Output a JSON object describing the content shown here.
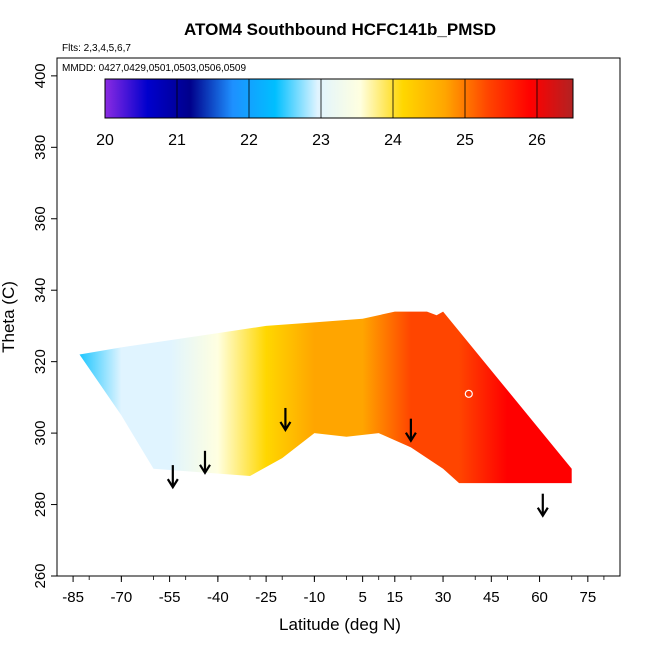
{
  "chart_data": {
    "type": "heatmap",
    "title": "ATOM4 Southbound HCFC141b_PMSD",
    "flights_note": "Flts: 2,3,4,5,6,7",
    "dates_note": "MMDD: 0427,0429,0501,0503,0506,0509",
    "xlabel": "Latitude (deg N)",
    "ylabel": "Theta (C)",
    "xlim": [
      -90,
      85
    ],
    "ylim": [
      260,
      405
    ],
    "x_tick_labels": [
      "-85",
      "-70",
      "-55",
      "-40",
      "-25",
      "-10",
      "5",
      "15",
      "30",
      "45",
      "60",
      "75"
    ],
    "y_tick_labels": [
      "260",
      "280",
      "300",
      "320",
      "340",
      "360",
      "380",
      "400"
    ],
    "colorbar": {
      "min": 20,
      "max": 26.5,
      "tick_labels": [
        "20",
        "21",
        "22",
        "23",
        "24",
        "25",
        "26"
      ],
      "colors": [
        "#8b2be2",
        "#0000cd",
        "#00008b",
        "#1e90ff",
        "#00bfff",
        "#e0f4ff",
        "#ffffe0",
        "#ffd700",
        "#ffa500",
        "#ff4500",
        "#ff0000",
        "#b22222"
      ]
    },
    "field": {
      "upper_boundary": [
        [
          -83,
          322
        ],
        [
          -70,
          324
        ],
        [
          -55,
          326
        ],
        [
          -40,
          328
        ],
        [
          -25,
          330
        ],
        [
          -10,
          331
        ],
        [
          5,
          332
        ],
        [
          15,
          334
        ],
        [
          25,
          334
        ],
        [
          28,
          333
        ]
      ],
      "lower_boundary": [
        [
          -83,
          322
        ],
        [
          -70,
          305
        ],
        [
          -60,
          290
        ],
        [
          -30,
          288
        ],
        [
          -20,
          293
        ],
        [
          -10,
          300
        ],
        [
          0,
          299
        ],
        [
          10,
          300
        ],
        [
          20,
          296
        ],
        [
          30,
          290
        ],
        [
          35,
          286
        ],
        [
          70,
          286
        ],
        [
          70,
          290
        ],
        [
          30,
          334
        ]
      ],
      "value_stops": [
        [
          -85,
          22.3
        ],
        [
          -70,
          22.7
        ],
        [
          -55,
          23.1
        ],
        [
          -40,
          23.7
        ],
        [
          -25,
          24.1
        ],
        [
          -10,
          24.5
        ],
        [
          5,
          24.8
        ],
        [
          20,
          25.1
        ],
        [
          35,
          25.4
        ],
        [
          50,
          25.8
        ],
        [
          70,
          26.0
        ]
      ]
    },
    "profile_arrows": [
      {
        "lat": -54,
        "theta": 286
      },
      {
        "lat": -44,
        "theta": 290
      },
      {
        "lat": -19,
        "theta": 302
      },
      {
        "lat": 20,
        "theta": 299
      },
      {
        "lat": 61,
        "theta": 278
      }
    ],
    "marker": {
      "lat": 38,
      "theta": 311
    }
  }
}
